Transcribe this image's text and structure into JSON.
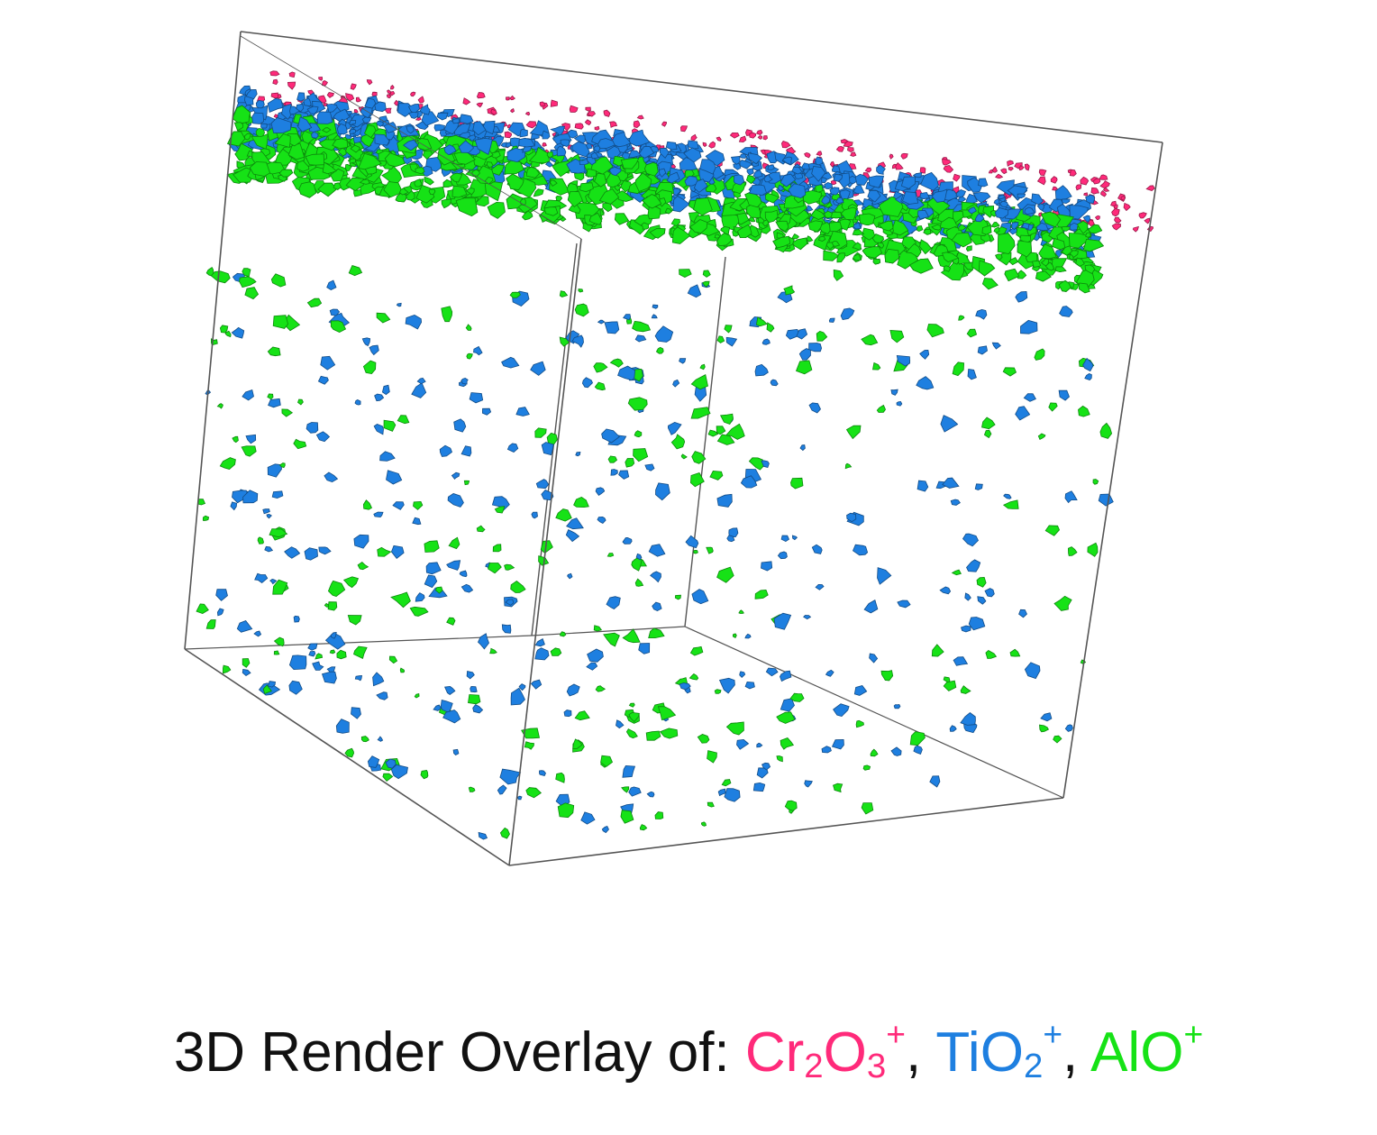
{
  "caption": {
    "prefix": "3D Render Overlay of: ",
    "species": [
      {
        "base": "Cr",
        "sub1": "2",
        "mid": "O",
        "sub2": "3",
        "charge": "+",
        "color": "#ff2a7a",
        "icon": "magenta-cluster"
      },
      {
        "base": "Ti",
        "sub1": "",
        "mid": "O",
        "sub2": "2",
        "charge": "+",
        "color": "#1e7fe0",
        "icon": "blue-cluster"
      },
      {
        "base": "Al",
        "sub1": "",
        "mid": "O",
        "sub2": "",
        "charge": "+",
        "color": "#16e216",
        "icon": "green-cluster"
      }
    ],
    "separator": ", "
  },
  "colors": {
    "box_edge": "#555555",
    "cr2o3": "#ff2a7a",
    "tio2": "#1e7fe0",
    "alo": "#16e216"
  }
}
